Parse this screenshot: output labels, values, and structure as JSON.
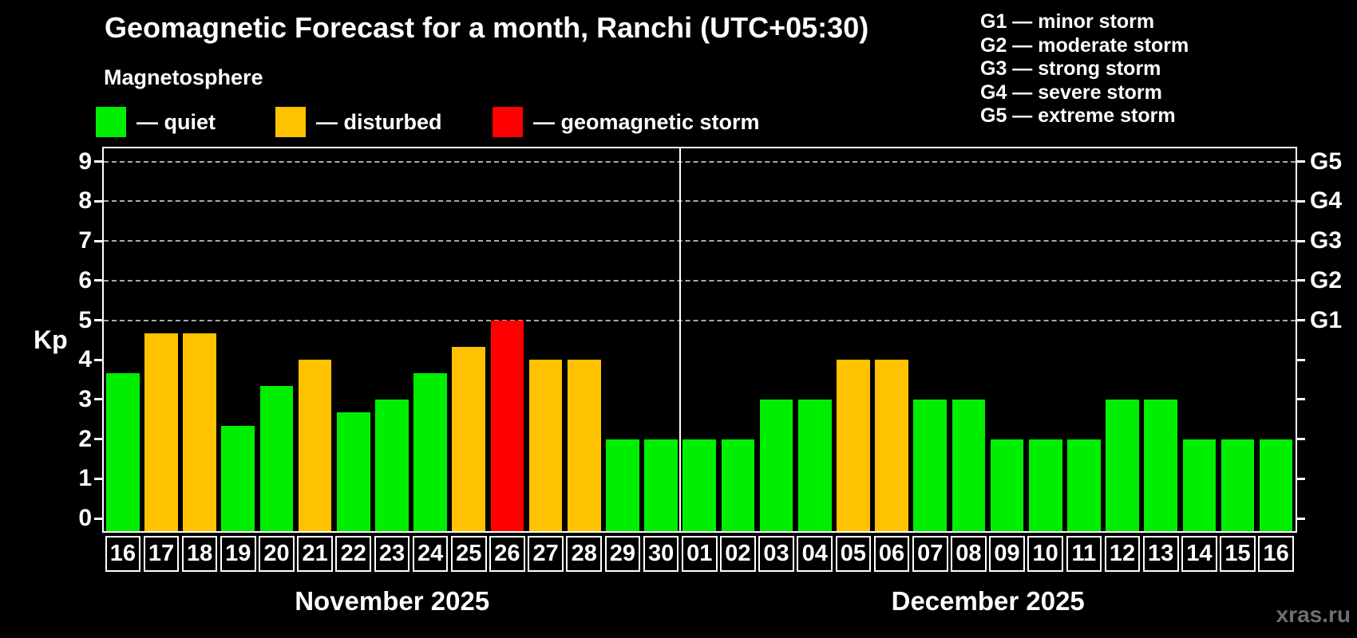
{
  "header": {
    "title": "Geomagnetic Forecast for a month, Ranchi (UTC+05:30)",
    "subtitle": "Magnetosphere",
    "legend": [
      {
        "key": "quiet",
        "label": "— quiet"
      },
      {
        "key": "disturbed",
        "label": "— disturbed"
      },
      {
        "key": "storm",
        "label": "— geomagnetic storm"
      }
    ],
    "g_scale_legend": [
      "G1 — minor storm",
      "G2 — moderate storm",
      "G3 — strong storm",
      "G4 — severe storm",
      "G5 — extreme storm"
    ]
  },
  "colors": {
    "quiet": "#00ef00",
    "disturbed": "#ffc200",
    "storm": "#ff0000",
    "gridline": "#a9a9a9",
    "axis": "#ffffff",
    "background": "#000000",
    "watermark_text": "#6f6f6f"
  },
  "chart_data": {
    "type": "bar",
    "title": "Geomagnetic Forecast for a month, Ranchi (UTC+05:30)",
    "ylabel": "Kp",
    "ylim": [
      0,
      9
    ],
    "yticks": [
      0,
      1,
      2,
      3,
      4,
      5,
      6,
      7,
      8,
      9
    ],
    "gridlines_at_kp": [
      5,
      6,
      7,
      8,
      9
    ],
    "grid": "dashed, only at storm levels G1-G5",
    "legend_position": "top",
    "right_axis": [
      {
        "label": "G1",
        "kp": 5
      },
      {
        "label": "G2",
        "kp": 6
      },
      {
        "label": "G3",
        "kp": 7
      },
      {
        "label": "G4",
        "kp": 8
      },
      {
        "label": "G5",
        "kp": 9
      }
    ],
    "months": [
      {
        "label": "November 2025",
        "days": [
          {
            "day": "16",
            "kp": 3.67,
            "status": "quiet"
          },
          {
            "day": "17",
            "kp": 4.67,
            "status": "disturbed"
          },
          {
            "day": "18",
            "kp": 4.67,
            "status": "disturbed"
          },
          {
            "day": "19",
            "kp": 2.33,
            "status": "quiet"
          },
          {
            "day": "20",
            "kp": 3.33,
            "status": "quiet"
          },
          {
            "day": "21",
            "kp": 4.0,
            "status": "disturbed"
          },
          {
            "day": "22",
            "kp": 2.67,
            "status": "quiet"
          },
          {
            "day": "23",
            "kp": 3.0,
            "status": "quiet"
          },
          {
            "day": "24",
            "kp": 3.67,
            "status": "quiet"
          },
          {
            "day": "25",
            "kp": 4.33,
            "status": "disturbed"
          },
          {
            "day": "26",
            "kp": 5.0,
            "status": "storm"
          },
          {
            "day": "27",
            "kp": 4.0,
            "status": "disturbed"
          },
          {
            "day": "28",
            "kp": 4.0,
            "status": "disturbed"
          },
          {
            "day": "29",
            "kp": 2.0,
            "status": "quiet"
          },
          {
            "day": "30",
            "kp": 2.0,
            "status": "quiet"
          }
        ]
      },
      {
        "label": "December 2025",
        "days": [
          {
            "day": "01",
            "kp": 2.0,
            "status": "quiet"
          },
          {
            "day": "02",
            "kp": 2.0,
            "status": "quiet"
          },
          {
            "day": "03",
            "kp": 3.0,
            "status": "quiet"
          },
          {
            "day": "04",
            "kp": 3.0,
            "status": "quiet"
          },
          {
            "day": "05",
            "kp": 4.0,
            "status": "disturbed"
          },
          {
            "day": "06",
            "kp": 4.0,
            "status": "disturbed"
          },
          {
            "day": "07",
            "kp": 3.0,
            "status": "quiet"
          },
          {
            "day": "08",
            "kp": 3.0,
            "status": "quiet"
          },
          {
            "day": "09",
            "kp": 2.0,
            "status": "quiet"
          },
          {
            "day": "10",
            "kp": 2.0,
            "status": "quiet"
          },
          {
            "day": "11",
            "kp": 2.0,
            "status": "quiet"
          },
          {
            "day": "12",
            "kp": 3.0,
            "status": "quiet"
          },
          {
            "day": "13",
            "kp": 3.0,
            "status": "quiet"
          },
          {
            "day": "14",
            "kp": 2.0,
            "status": "quiet"
          },
          {
            "day": "15",
            "kp": 2.0,
            "status": "quiet"
          },
          {
            "day": "16",
            "kp": 2.0,
            "status": "quiet"
          }
        ]
      }
    ]
  },
  "watermark": "xras.ru"
}
